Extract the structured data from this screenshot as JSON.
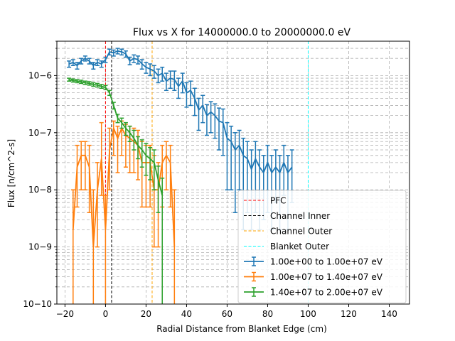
{
  "chart_data": {
    "type": "line",
    "title": "Flux vs X for 14000000.0 to 20000000.0 eV",
    "xlabel": "Radial Distance from Blanket Edge (cm)",
    "ylabel": "Flux [n/cm^2-s]",
    "xlim": [
      -24,
      150
    ],
    "ylim": [
      1e-10,
      4e-06
    ],
    "yscale": "log",
    "grid": true,
    "legend_position": "lower right",
    "xticks": [
      -20,
      0,
      20,
      40,
      60,
      80,
      100,
      120,
      140
    ],
    "xtick_labels": [
      "−20",
      "0",
      "20",
      "40",
      "60",
      "80",
      "100",
      "120",
      "140"
    ],
    "yticks": [
      1e-10,
      1e-09,
      1e-08,
      1e-07,
      1e-06
    ],
    "ytick_labels": [
      "10−10",
      "10−9",
      "10−8",
      "10−7",
      "10−6"
    ],
    "vlines": [
      {
        "name": "PFC",
        "x": 0,
        "color": "#ff0000"
      },
      {
        "name": "Channel Inner",
        "x": 3,
        "color": "#000000"
      },
      {
        "name": "Channel Outer",
        "x": 23,
        "color": "#ffa500"
      },
      {
        "name": "Blanket Outer",
        "x": 100,
        "color": "#00ffff"
      }
    ],
    "series": [
      {
        "name": "1.00e+00 to 1.00e+07 eV",
        "color": "#1f77b4",
        "x": [
          -18,
          -16,
          -14,
          -12,
          -10,
          -8,
          -6,
          -4,
          -2,
          0,
          2,
          4,
          6,
          8,
          10,
          12,
          14,
          16,
          18,
          20,
          22,
          24,
          26,
          28,
          30,
          32,
          34,
          36,
          38,
          40,
          42,
          44,
          46,
          48,
          50,
          52,
          54,
          56,
          58,
          60,
          62,
          64,
          66,
          68,
          70,
          72,
          74,
          76,
          78,
          80,
          82,
          84,
          86,
          88,
          90,
          92
        ],
        "y": [
          1.6e-06,
          1.7e-06,
          1.5e-06,
          1.8e-06,
          2e-06,
          1.8e-06,
          1.5e-06,
          1.7e-06,
          1.6e-06,
          1.9e-06,
          2.6e-06,
          2.5e-06,
          2.7e-06,
          2.6e-06,
          2.4e-06,
          1.8e-06,
          2e-06,
          1.9e-06,
          1.6e-06,
          1.4e-06,
          1.3e-06,
          1.2e-06,
          1e-06,
          1.1e-06,
          8e-07,
          9e-07,
          8.5e-07,
          6.5e-07,
          8e-07,
          5e-07,
          5.5e-07,
          4e-07,
          2.5e-07,
          3e-07,
          2e-07,
          2.3e-07,
          2e-07,
          1.6e-07,
          1.5e-07,
          8e-08,
          7e-08,
          5e-08,
          6e-08,
          4e-08,
          3.5e-08,
          2.3e-08,
          3.5e-08,
          2.5e-08,
          2e-08,
          3e-08,
          2e-08,
          2.5e-08,
          2e-08,
          3e-08,
          2e-08,
          2.5e-08
        ],
        "yerr_low": [
          1.4e-06,
          1.5e-06,
          1.3e-06,
          1.6e-06,
          1.8e-06,
          1.6e-06,
          1.3e-06,
          1.5e-06,
          1.4e-06,
          1.7e-06,
          2.3e-06,
          2.2e-06,
          2.4e-06,
          2.3e-06,
          2.1e-06,
          1.55e-06,
          1.7e-06,
          1.6e-06,
          1.3e-06,
          1.1e-06,
          1e-06,
          9e-07,
          7.5e-07,
          8e-07,
          5.5e-07,
          6e-07,
          5.5e-07,
          4e-07,
          5e-07,
          2.8e-07,
          3e-07,
          2e-07,
          1.1e-07,
          1.5e-07,
          9e-08,
          1e-07,
          8e-08,
          5e-08,
          4e-08,
          1e-08,
          1e-08,
          4e-09,
          1e-08,
          2e-09,
          4e-09,
          2e-09,
          4e-09,
          2e-09,
          3e-09,
          4e-09,
          2e-09,
          6e-09,
          2e-09,
          8e-09,
          2e-09,
          6e-09
        ],
        "yerr_high": [
          1.8e-06,
          1.9e-06,
          1.7e-06,
          2e-06,
          2.2e-06,
          2e-06,
          1.7e-06,
          1.9e-06,
          1.8e-06,
          2.1e-06,
          2.9e-06,
          2.8e-06,
          3e-06,
          2.9e-06,
          2.7e-06,
          2.1e-06,
          2.3e-06,
          2.2e-06,
          1.9e-06,
          1.7e-06,
          1.6e-06,
          1.5e-06,
          1.3e-06,
          1.4e-06,
          1.1e-06,
          1.2e-06,
          1.2e-06,
          9e-07,
          1.1e-06,
          7.5e-07,
          8e-07,
          6e-07,
          4e-07,
          4.5e-07,
          3.1e-07,
          3.5e-07,
          3.2e-07,
          2.7e-07,
          2.6e-07,
          1.5e-07,
          1.3e-07,
          1e-07,
          1.1e-07,
          8e-08,
          7e-08,
          5e-08,
          7e-08,
          5e-08,
          4e-08,
          6e-08,
          4e-08,
          5e-08,
          4e-08,
          6e-08,
          4e-08,
          5e-08
        ]
      },
      {
        "name": "1.00e+07 to 1.40e+07 eV",
        "color": "#ff7f0e",
        "x": [
          -16,
          -14,
          -12,
          -10,
          -8,
          -6,
          -4,
          -2,
          0,
          2,
          4,
          6,
          8,
          10,
          12,
          14,
          16,
          18,
          20,
          22,
          24,
          26,
          28,
          30,
          32,
          34
        ],
        "y": [
          2e-09,
          2.5e-08,
          4e-08,
          4e-08,
          2.5e-08,
          1e-09,
          1e-08,
          3.5e-08,
          2e-09,
          5e-08,
          1.2e-07,
          8e-08,
          1.2e-07,
          9e-08,
          8e-08,
          7e-08,
          6e-08,
          3e-08,
          3e-08,
          3e-08,
          1e-08,
          1e-08,
          3e-08,
          4e-08,
          3e-08,
          1e-09
        ],
        "yerr_low": [
          1e-10,
          5e-09,
          1e-08,
          1e-08,
          4e-09,
          1e-10,
          1e-09,
          8e-09,
          1e-10,
          1e-08,
          4e-08,
          2e-08,
          4e-08,
          2.5e-08,
          2e-08,
          2e-08,
          1.5e-08,
          5e-09,
          5e-09,
          5e-09,
          1e-09,
          1e-09,
          5e-09,
          1e-08,
          5e-09,
          1e-10
        ],
        "yerr_high": [
          1e-08,
          6e-08,
          7e-08,
          7e-08,
          6e-08,
          1e-08,
          3e-08,
          1.5e-07,
          8e-09,
          1.2e-07,
          1.6e-07,
          1.3e-07,
          1.6e-07,
          1.4e-07,
          1.3e-07,
          1.2e-07,
          1.1e-07,
          7e-08,
          6e-08,
          6e-08,
          4e-08,
          3e-08,
          6e-08,
          7e-08,
          6e-08,
          1e-08
        ]
      },
      {
        "name": "1.40e+07 to 2.00e+07 eV",
        "color": "#2ca02c",
        "x": [
          -18,
          -16,
          -14,
          -12,
          -10,
          -8,
          -6,
          -4,
          -2,
          0,
          2,
          4,
          6,
          8,
          10,
          12,
          14,
          16,
          18,
          20,
          22,
          24,
          26,
          28
        ],
        "y": [
          8.5e-07,
          8.2e-07,
          8e-07,
          7.8e-07,
          7.5e-07,
          7.3e-07,
          7e-07,
          6.8e-07,
          6.5e-07,
          6.2e-07,
          5e-07,
          3e-07,
          1.8e-07,
          1.5e-07,
          1.2e-07,
          1e-07,
          8e-08,
          6e-08,
          5e-08,
          4e-08,
          3.5e-08,
          3e-08,
          1.5e-08,
          8e-09
        ],
        "yerr_low": [
          8e-07,
          7.7e-07,
          7.5e-07,
          7.3e-07,
          7e-07,
          6.8e-07,
          6.5e-07,
          6.3e-07,
          6e-07,
          5.7e-07,
          4.5e-07,
          2.6e-07,
          1.5e-07,
          1.2e-07,
          9e-08,
          7e-08,
          5e-08,
          3.5e-08,
          2.5e-08,
          1.8e-08,
          1.5e-08,
          1e-08,
          4e-09,
          1e-10
        ],
        "yerr_high": [
          9e-07,
          8.7e-07,
          8.5e-07,
          8.3e-07,
          8e-07,
          7.8e-07,
          7.5e-07,
          7.3e-07,
          7e-07,
          6.7e-07,
          5.5e-07,
          3.4e-07,
          2.1e-07,
          1.8e-07,
          1.5e-07,
          1.3e-07,
          1.1e-07,
          8.5e-08,
          7.5e-08,
          6.5e-08,
          5.5e-08,
          5e-08,
          2.6e-08,
          1.6e-08
        ]
      }
    ]
  }
}
